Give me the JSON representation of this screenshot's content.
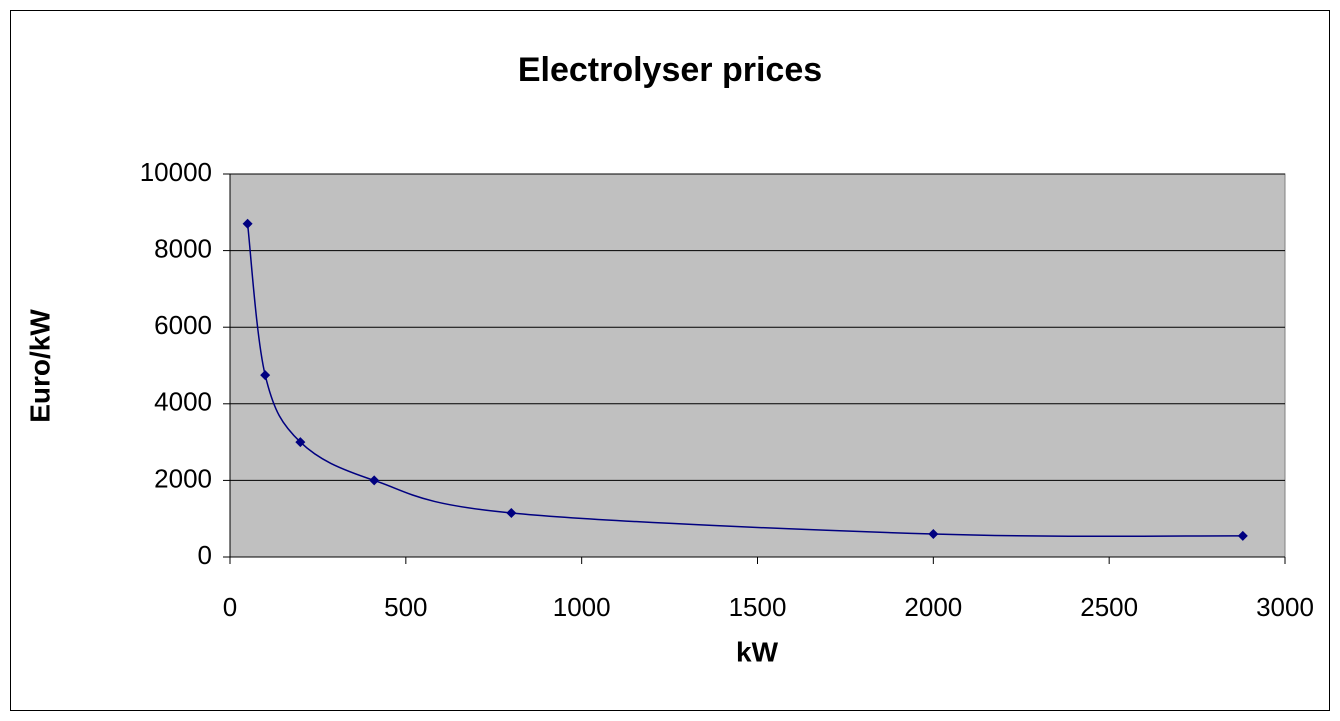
{
  "chart_data": {
    "type": "line",
    "title": "Electrolyser prices",
    "x_label": "kW",
    "y_label": "Euro/kW",
    "x": [
      50,
      100,
      200,
      410,
      800,
      2000,
      2880
    ],
    "series": [
      {
        "name": "Electrolyser prices",
        "color": "#000080",
        "values": [
          8700,
          4750,
          3000,
          2000,
          1150,
          600,
          550
        ]
      }
    ],
    "xlim": [
      0,
      3000
    ],
    "xticks": [
      0,
      500,
      1000,
      1500,
      2000,
      2500,
      3000
    ],
    "ylim": [
      0,
      10000
    ],
    "yticks": [
      0,
      2000,
      4000,
      6000,
      8000,
      10000
    ],
    "grid": true,
    "smooth": true
  }
}
